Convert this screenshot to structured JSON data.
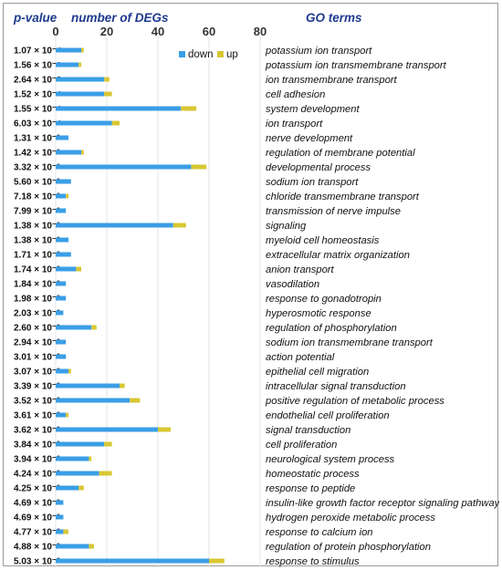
{
  "chart_data": {
    "type": "bar",
    "orientation": "horizontal",
    "stacked": true,
    "headers": {
      "pvalue": "p-value",
      "count": "number of DEGs",
      "terms": "GO terms"
    },
    "xlim": [
      0,
      80
    ],
    "xticks": [
      "0",
      "20",
      "40",
      "60",
      "80"
    ],
    "legend": {
      "placement": "top-right",
      "entries": [
        "down",
        "up"
      ]
    },
    "colors": {
      "down": "#3a9ee6",
      "up": "#d8c733"
    },
    "categories": [
      "potassium ion transport",
      "potassium ion transmembrane transport",
      "ion transmembrane transport",
      "cell adhesion",
      "system development",
      "ion transport",
      "nerve development",
      "regulation of membrane potential",
      "developmental process",
      "sodium ion transport",
      "chloride transmembrane transport",
      "transmission of nerve impulse",
      "signaling",
      "myeloid cell homeostasis",
      "extracellular matrix organization",
      "anion transport",
      "vasodilation",
      "response to gonadotropin",
      "hyperosmotic response",
      "regulation of phosphorylation",
      "sodium ion transmembrane transport",
      "action potential",
      "epithelial cell migration",
      "intracellular signal transduction",
      "positive regulation of metabolic process",
      "endothelial cell proliferation",
      "signal transduction",
      "cell proliferation",
      "neurological system process",
      "homeostatic process",
      "response to peptide",
      "insulin-like growth factor receptor signaling pathway",
      "hydrogen peroxide metabolic process",
      "response to calcium ion",
      "regulation of protein phosphorylation",
      "response to stimulus"
    ],
    "pvalues": [
      "1.07 × 10⁻⁴",
      "1.56 × 10⁻⁶",
      "2.64 × 10⁻⁵",
      "1.52 × 10⁻⁴",
      "1.55 × 10⁻⁴",
      "6.03 × 10⁻⁴",
      "1.31 × 10⁻³",
      "1.42 × 10⁻³",
      "3.32 × 10⁻³",
      "5.60 × 10⁻³",
      "7.18 × 10⁻³",
      "7.99 × 10⁻³",
      "1.38 × 10⁻²",
      "1.38 × 10⁻²",
      "1.71 × 10⁻²",
      "1.74 × 10⁻²",
      "1.84 × 10⁻²",
      "1.98 × 10⁻²",
      "2.03 × 10⁻²",
      "2.60 × 10⁻²",
      "2.94 × 10⁻²",
      "3.01 × 10⁻²",
      "3.07 × 10⁻²",
      "3.39 × 10⁻²",
      "3.52 × 10⁻²",
      "3.61 × 10⁻²",
      "3.62 × 10⁻²",
      "3.84 × 10⁻²",
      "3.94 × 10⁻²",
      "4.24 × 10⁻²",
      "4.25 × 10⁻²",
      "4.69 × 10⁻²",
      "4.69 × 10⁻²",
      "4.77 × 10⁻²",
      "4.88 × 10⁻²",
      "5.03 × 10⁻²"
    ],
    "series": [
      {
        "name": "down",
        "values": [
          10,
          9,
          19,
          19,
          49,
          22,
          5,
          10,
          53,
          6,
          4,
          4,
          46,
          5,
          6,
          8,
          4,
          4,
          3,
          14,
          4,
          4,
          5,
          25,
          29,
          4,
          40,
          19,
          13,
          17,
          9,
          3,
          3,
          3,
          13,
          60
        ]
      },
      {
        "name": "up",
        "values": [
          1,
          1,
          2,
          3,
          6,
          3,
          0,
          1,
          6,
          0,
          1,
          0,
          5,
          0,
          0,
          2,
          0,
          0,
          0,
          2,
          0,
          0,
          1,
          2,
          4,
          1,
          5,
          3,
          1,
          5,
          2,
          0,
          0,
          2,
          2,
          6
        ]
      }
    ]
  }
}
